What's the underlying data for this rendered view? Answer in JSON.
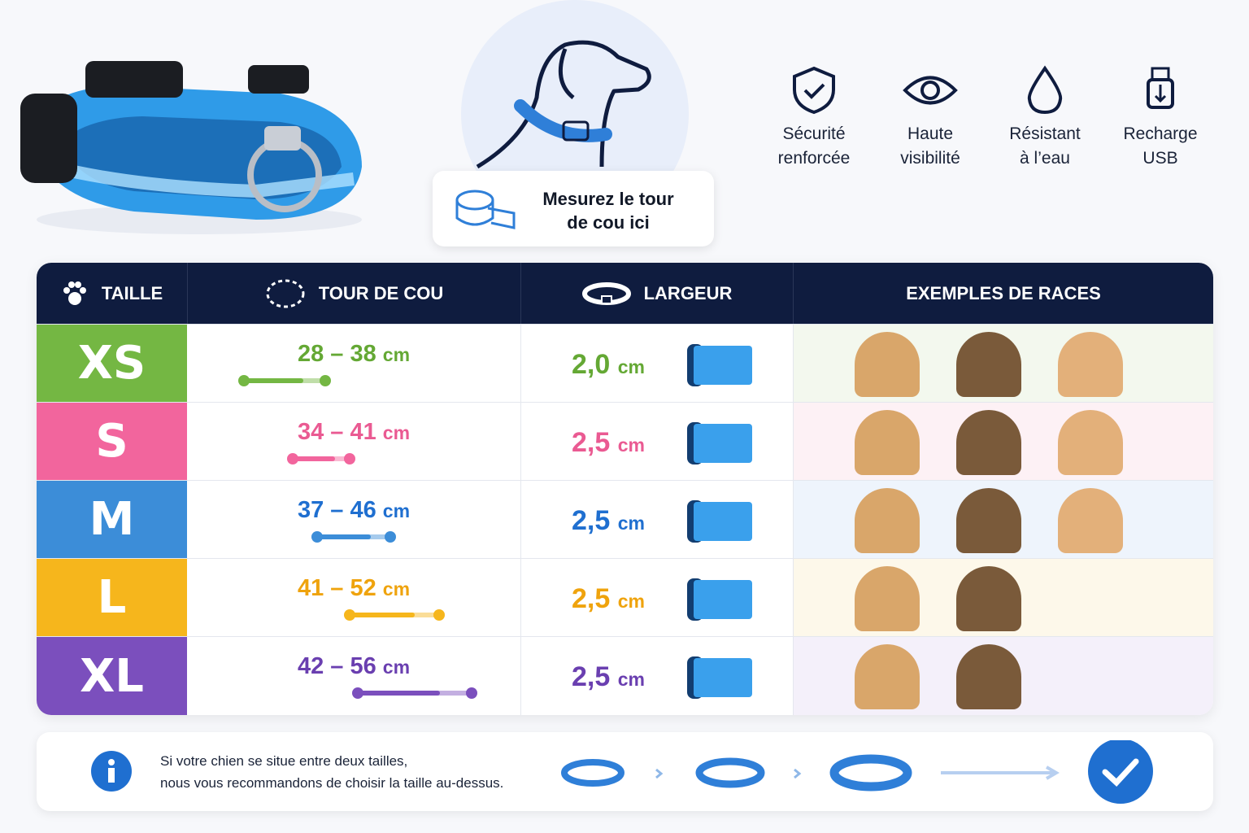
{
  "features": [
    {
      "label": [
        "Sécurité",
        "renforcée"
      ]
    },
    {
      "label": [
        "Haute",
        "visibilité"
      ]
    },
    {
      "label": [
        "Résistant",
        "à l’eau"
      ]
    },
    {
      "label": [
        "Recharge",
        "USB"
      ]
    }
  ],
  "measure_hint": [
    "Mesurez le tour",
    "de cou ici"
  ],
  "table": {
    "headers": [
      "TAILLE",
      "TOUR DE COU",
      "LARGEUR",
      "EXEMPLES DE RACES"
    ],
    "separator": "–",
    "rows": [
      {
        "size": "XS",
        "neck": {
          "min": 28,
          "max": 38,
          "unit": "cm"
        },
        "width": {
          "value": "2,0",
          "unit": "cm"
        },
        "color": "#74b743",
        "text_color": "#64a834",
        "tint": "#f3f8ee"
      },
      {
        "size": "S",
        "neck": {
          "min": 34,
          "max": 41,
          "unit": "cm"
        },
        "width": {
          "value": "2,5",
          "unit": "cm"
        },
        "color": "#f2659d",
        "text_color": "#ea5a92",
        "tint": "#fdf1f5"
      },
      {
        "size": "M",
        "neck": {
          "min": 37,
          "max": 46,
          "unit": "cm"
        },
        "width": {
          "value": "2,5",
          "unit": "cm"
        },
        "color": "#3c8dd8",
        "text_color": "#1f6fd0",
        "tint": "#eef4fc"
      },
      {
        "size": "L",
        "neck": {
          "min": 41,
          "max": 52,
          "unit": "cm"
        },
        "width": {
          "value": "2,5",
          "unit": "cm"
        },
        "color": "#f6b61c",
        "text_color": "#efa30d",
        "tint": "#fdf8ea"
      },
      {
        "size": "XL",
        "neck": {
          "min": 42,
          "max": 56,
          "unit": "cm"
        },
        "width": {
          "value": "2,5",
          "unit": "cm"
        },
        "color": "#7b4fbd",
        "text_color": "#6a3fb0",
        "tint": "#f4f0fa"
      }
    ]
  },
  "note": [
    "Si votre chien se situe entre deux tailles,",
    "nous vous recommandons de choisir la taille au-dessus."
  ]
}
